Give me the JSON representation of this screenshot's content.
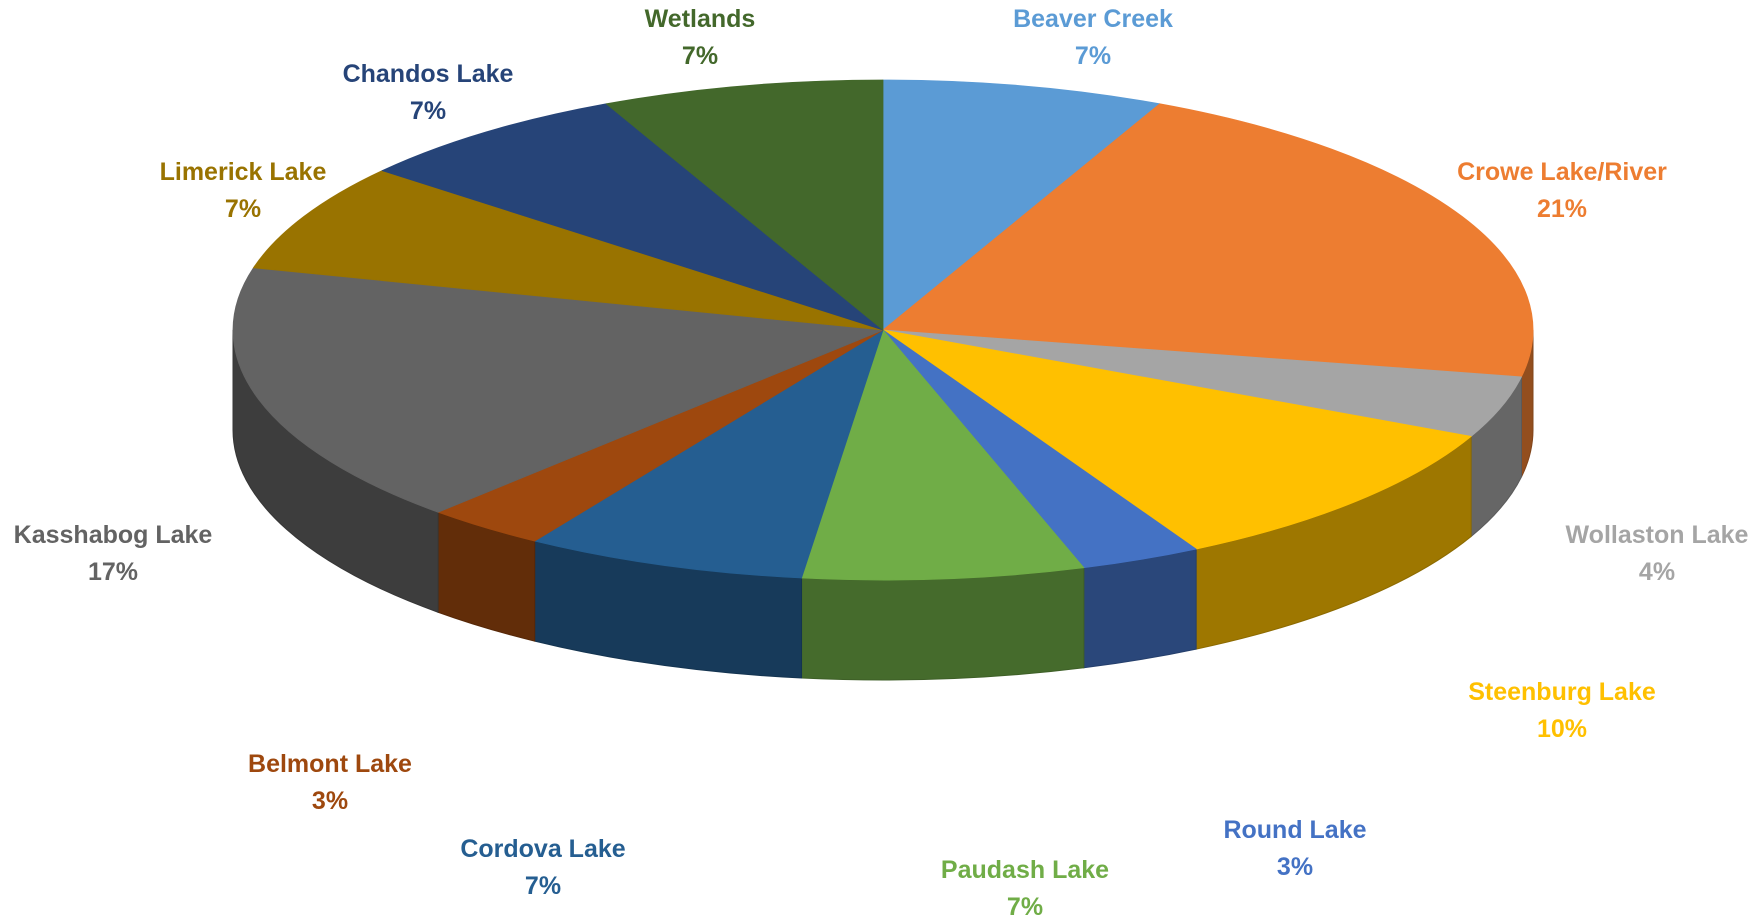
{
  "chart_data": {
    "type": "pie",
    "style": "3d-pie",
    "title": "",
    "slices": [
      {
        "label": "Beaver Creek",
        "value": 7,
        "value_label": "7%",
        "color": "#5B9BD5"
      },
      {
        "label": "Crowe Lake/River",
        "value": 21,
        "value_label": "21%",
        "color": "#ED7D31"
      },
      {
        "label": "Wollaston Lake",
        "value": 4,
        "value_label": "4%",
        "color": "#A5A5A5"
      },
      {
        "label": "Steenburg Lake",
        "value": 10,
        "value_label": "10%",
        "color": "#FFC000"
      },
      {
        "label": "Round Lake",
        "value": 3,
        "value_label": "3%",
        "color": "#4472C4"
      },
      {
        "label": "Paudash Lake",
        "value": 7,
        "value_label": "7%",
        "color": "#70AD47"
      },
      {
        "label": "Cordova Lake",
        "value": 7,
        "value_label": "7%",
        "color": "#255E91"
      },
      {
        "label": "Belmont Lake",
        "value": 3,
        "value_label": "3%",
        "color": "#9E480E"
      },
      {
        "label": "Kasshabog Lake",
        "value": 17,
        "value_label": "17%",
        "color": "#636363"
      },
      {
        "label": "Limerick Lake",
        "value": 7,
        "value_label": "7%",
        "color": "#997300"
      },
      {
        "label": "Chandos Lake",
        "value": 7,
        "value_label": "7%",
        "color": "#264478"
      },
      {
        "label": "Wetlands",
        "value": 7,
        "value_label": "7%",
        "color": "#43682B"
      }
    ]
  }
}
